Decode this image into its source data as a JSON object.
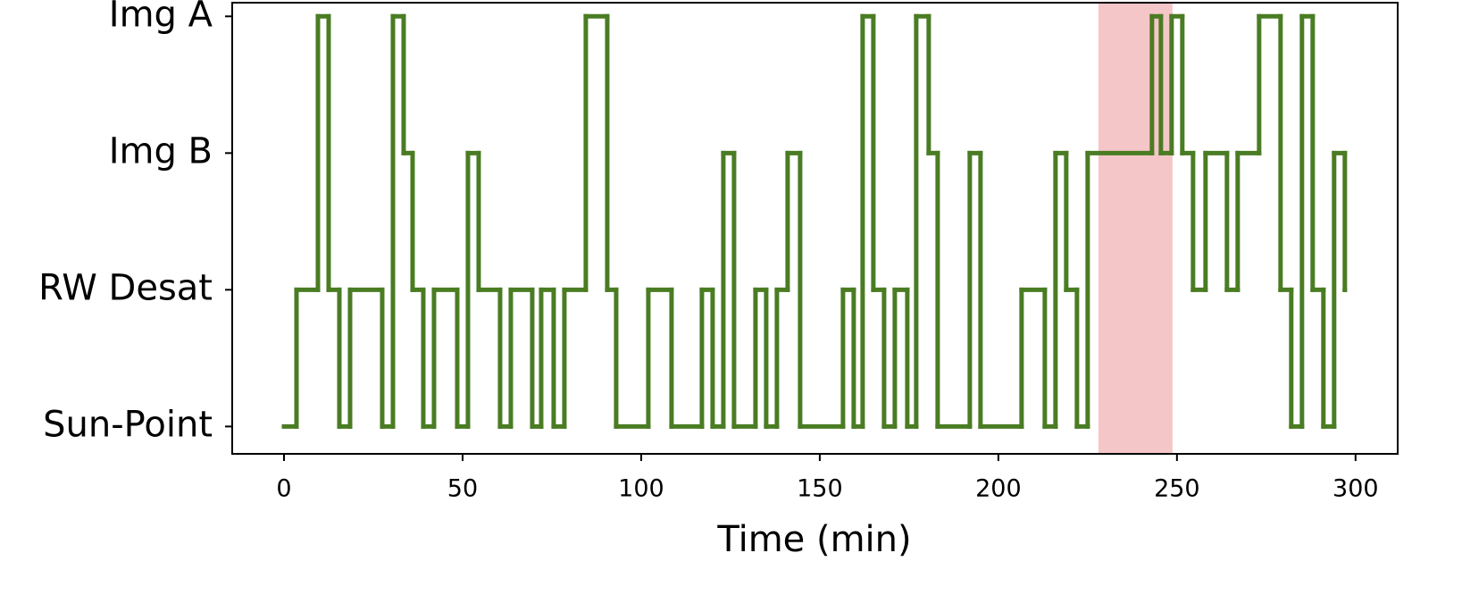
{
  "chart_data": {
    "type": "step",
    "x_label": "Time (min)",
    "x": [
      0,
      3.5,
      9.5,
      12.5,
      15.5,
      18.5,
      27.5,
      30.5,
      33.5,
      36,
      39,
      42,
      48.5,
      51.5,
      54.5,
      60.5,
      63.5,
      69.5,
      72,
      75.5,
      78.5,
      84.5,
      90.5,
      93,
      102,
      108.5,
      117,
      120,
      123,
      126,
      132,
      135,
      138,
      141,
      144.5,
      156.5,
      159.5,
      162,
      165,
      168,
      171,
      174.5,
      177,
      180.5,
      183,
      192,
      195,
      206.5,
      213,
      216,
      219,
      222,
      225,
      243,
      245.5,
      248.5,
      251.5,
      254.5,
      258,
      264,
      267,
      273,
      279,
      282,
      285,
      288,
      291,
      294,
      297
    ],
    "values": [
      0,
      1,
      3,
      1,
      0,
      1,
      0,
      3,
      2,
      1,
      0,
      1,
      0,
      2,
      1,
      0,
      1,
      0,
      1,
      0,
      1,
      3,
      1,
      0,
      1,
      0,
      1,
      0,
      2,
      0,
      1,
      0,
      1,
      2,
      0,
      1,
      0,
      3,
      1,
      0,
      1,
      0,
      3,
      2,
      0,
      2,
      0,
      1,
      0,
      2,
      1,
      0,
      2,
      3,
      2,
      3,
      2,
      1,
      2,
      1,
      2,
      3,
      1,
      0,
      3,
      1,
      0,
      2,
      1
    ],
    "color": "#4a7c23",
    "xlim": [
      -14.5,
      311.8
    ],
    "xticks": [
      0,
      50,
      100,
      150,
      200,
      250,
      300
    ],
    "ylim": [
      -0.2,
      3.1
    ],
    "yticks": [
      {
        "value": 0,
        "label": "Sun-Point"
      },
      {
        "value": 1,
        "label": "RW Desat"
      },
      {
        "value": 2,
        "label": "Img B"
      },
      {
        "value": 3,
        "label": "Img A"
      }
    ],
    "highlight_span": {
      "x": [
        228,
        248.75
      ],
      "color": "#f5c6c8"
    }
  }
}
